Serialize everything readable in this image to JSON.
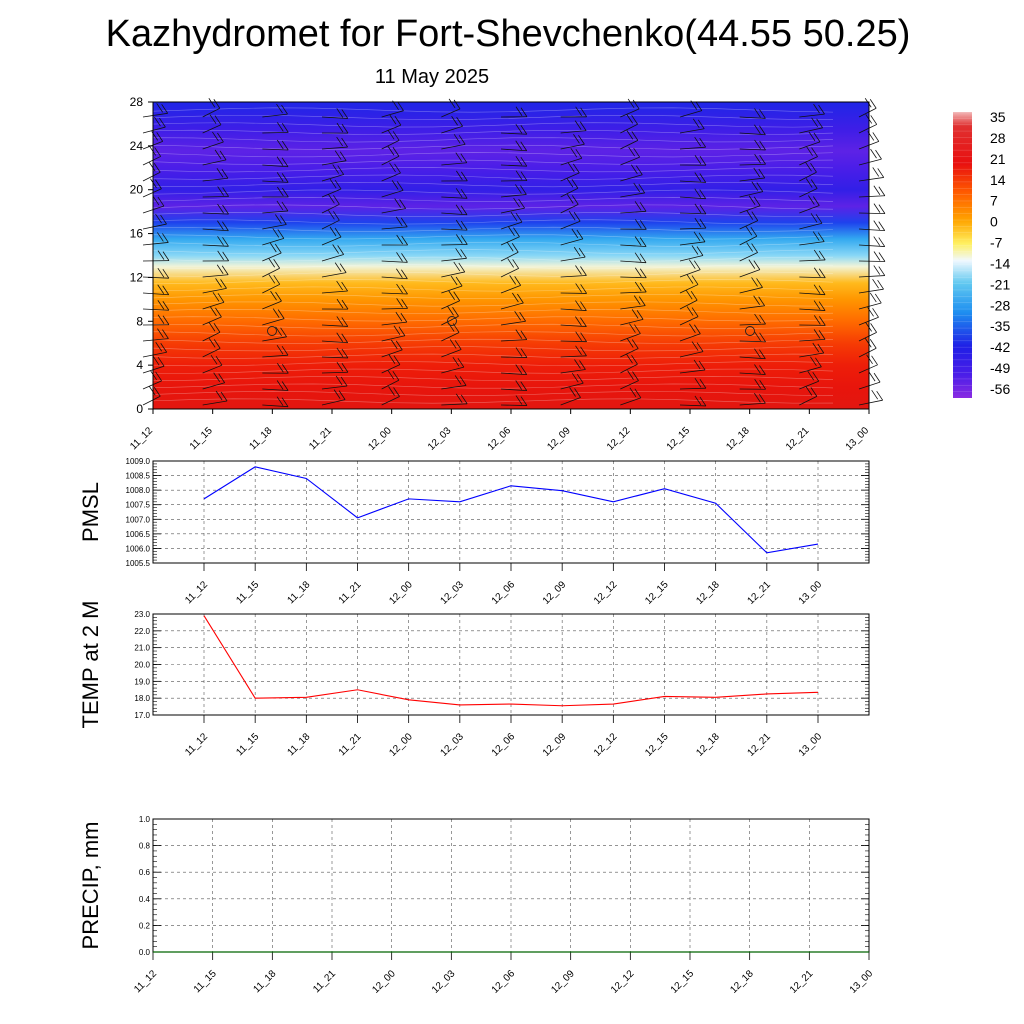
{
  "title": "Kazhydromet for Fort-Shevchenko(44.55 50.25)",
  "subtitle": "11 May 2025",
  "chart_data": [
    {
      "type": "heatmap",
      "name": "vertical-profile",
      "x_labels": [
        "11_12",
        "11_15",
        "11_18",
        "11_21",
        "12_00",
        "12_03",
        "12_06",
        "12_09",
        "12_12",
        "12_15",
        "12_18",
        "12_21",
        "13_00"
      ],
      "y_ticks": [
        0,
        4,
        8,
        12,
        16,
        20,
        24,
        28
      ],
      "ylim": [
        0,
        28
      ],
      "z_bands": [
        {
          "y": 0,
          "value": 24
        },
        {
          "y": 2,
          "value": 22
        },
        {
          "y": 4,
          "value": 20
        },
        {
          "y": 6,
          "value": 17
        },
        {
          "y": 8,
          "value": 12
        },
        {
          "y": 10,
          "value": 7
        },
        {
          "y": 11.5,
          "value": 2
        },
        {
          "y": 13,
          "value": -12
        },
        {
          "y": 14,
          "value": -20
        },
        {
          "y": 15.5,
          "value": -30
        },
        {
          "y": 17,
          "value": -44
        },
        {
          "y": 18.5,
          "value": -58
        },
        {
          "y": 20,
          "value": -52
        },
        {
          "y": 22,
          "value": -56
        },
        {
          "y": 23.5,
          "value": -58
        },
        {
          "y": 25.5,
          "value": -54
        },
        {
          "y": 28,
          "value": -48
        }
      ],
      "colorbar": {
        "labels": [
          "35",
          "28",
          "21",
          "14",
          "7",
          "0",
          "-7",
          "-14",
          "-21",
          "-28",
          "-35",
          "-42",
          "-49",
          "-56"
        ],
        "values": [
          35,
          28,
          21,
          14,
          7,
          0,
          -7,
          -14,
          -21,
          -28,
          -35,
          -42,
          -49,
          -56
        ],
        "range": [
          -63,
          38
        ]
      }
    },
    {
      "type": "line",
      "name": "pmsl",
      "ylabel": "PMSL",
      "categories": [
        "11_12",
        "11_15",
        "11_18",
        "11_21",
        "12_00",
        "12_03",
        "12_06",
        "12_09",
        "12_12",
        "12_15",
        "12_18",
        "12_21",
        "13_00"
      ],
      "values": [
        1007.7,
        1008.8,
        1008.4,
        1007.05,
        1007.7,
        1007.6,
        1008.15,
        1007.98,
        1007.6,
        1008.05,
        1007.55,
        1005.85,
        1006.15
      ],
      "ylim": [
        1005.5,
        1009.0
      ],
      "y_ticks": [
        "1005.5",
        "1006.0",
        "1006.5",
        "1007.0",
        "1007.5",
        "1008.0",
        "1008.5",
        "1009.0"
      ],
      "color": "#0000ff",
      "grid": true
    },
    {
      "type": "line",
      "name": "temp2m",
      "ylabel": "TEMP at 2 M",
      "categories": [
        "11_12",
        "11_15",
        "11_18",
        "11_21",
        "12_00",
        "12_03",
        "12_06",
        "12_09",
        "12_12",
        "12_15",
        "12_18",
        "12_21",
        "13_00"
      ],
      "values": [
        22.9,
        18.0,
        18.05,
        18.5,
        17.9,
        17.6,
        17.65,
        17.55,
        17.65,
        18.1,
        18.05,
        18.25,
        18.35
      ],
      "ylim": [
        17.0,
        23.0
      ],
      "y_ticks": [
        "17.0",
        "18.0",
        "19.0",
        "20.0",
        "21.0",
        "22.0",
        "23.0"
      ],
      "color": "#ff0000",
      "grid": true
    },
    {
      "type": "bar",
      "name": "precip",
      "ylabel": "PRECIP, mm",
      "categories": [
        "11_12",
        "11_15",
        "11_18",
        "11_21",
        "12_00",
        "12_03",
        "12_06",
        "12_09",
        "12_12",
        "12_15",
        "12_18",
        "12_21",
        "13_00"
      ],
      "values": [
        0,
        0,
        0,
        0,
        0,
        0,
        0,
        0,
        0,
        0,
        0,
        0,
        0
      ],
      "ylim": [
        0.0,
        1.0
      ],
      "y_ticks": [
        "0.0",
        "0.2",
        "0.4",
        "0.6",
        "0.8",
        "1.0"
      ],
      "color": "#006400",
      "grid": true
    }
  ]
}
